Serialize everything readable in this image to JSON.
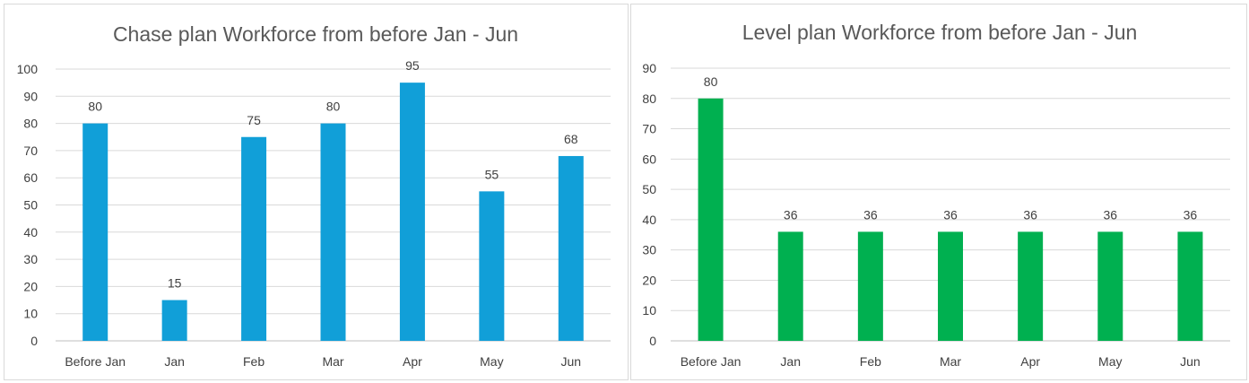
{
  "chart_data": [
    {
      "type": "bar",
      "title": "Chase plan Workforce from before Jan - Jun",
      "categories": [
        "Before Jan",
        "Jan",
        "Feb",
        "Mar",
        "Apr",
        "May",
        "Jun"
      ],
      "values": [
        80,
        15,
        75,
        80,
        95,
        55,
        68
      ],
      "data_labels": [
        "80",
        "15",
        "75",
        "80",
        "95",
        "55",
        "68"
      ],
      "xlabel": "",
      "ylabel": "",
      "ylim": [
        0,
        100
      ],
      "ytick_step": 10,
      "yticks": [
        "0",
        "10",
        "20",
        "30",
        "40",
        "50",
        "60",
        "70",
        "80",
        "90",
        "100"
      ],
      "bar_color": "#119fd8",
      "grid": true,
      "legend": "none"
    },
    {
      "type": "bar",
      "title": "Level plan Workforce from before Jan - Jun",
      "categories": [
        "Before Jan",
        "Jan",
        "Feb",
        "Mar",
        "Apr",
        "May",
        "Jun"
      ],
      "values": [
        80,
        36,
        36,
        36,
        36,
        36,
        36
      ],
      "data_labels": [
        "80",
        "36",
        "36",
        "36",
        "36",
        "36",
        "36"
      ],
      "xlabel": "",
      "ylabel": "",
      "ylim": [
        0,
        90
      ],
      "ytick_step": 10,
      "yticks": [
        "0",
        "10",
        "20",
        "30",
        "40",
        "50",
        "60",
        "70",
        "80",
        "90"
      ],
      "bar_color": "#00b050",
      "grid": true,
      "legend": "none"
    }
  ]
}
